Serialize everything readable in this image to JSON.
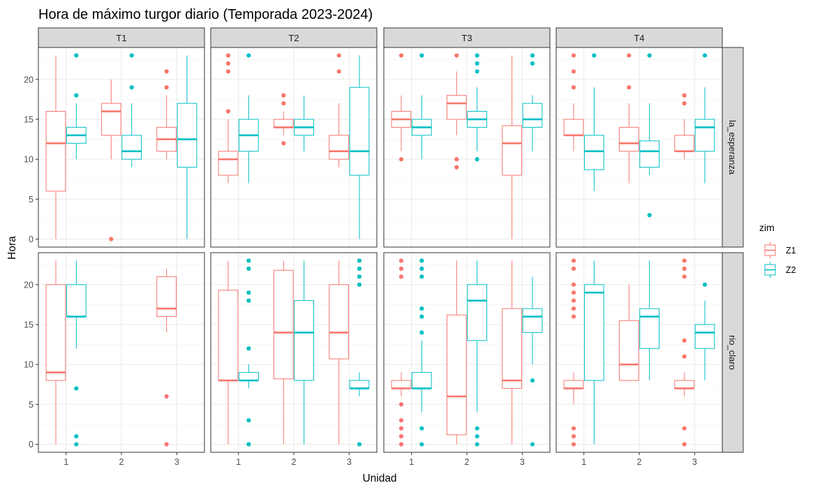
{
  "chart_data": {
    "type": "boxplot",
    "title": "Hora de máximo turgor diario (Temporada 2023-2024)",
    "xlabel": "Unidad",
    "ylabel": "Hora",
    "x_categories": [
      "1",
      "2",
      "3"
    ],
    "y_ticks": [
      0,
      5,
      10,
      15,
      20
    ],
    "ylim": [
      -1,
      24
    ],
    "grid": true,
    "facet_cols": [
      "T1",
      "T2",
      "T3",
      "T4"
    ],
    "facet_rows": [
      "la_esperanza",
      "rio_claro"
    ],
    "legend": {
      "title": "zim",
      "position": "right",
      "entries": [
        {
          "name": "Z1",
          "color": "#F8766D"
        },
        {
          "name": "Z2",
          "color": "#00BFC4"
        }
      ]
    },
    "boxes": [
      {
        "row": "la_esperanza",
        "col": "T1",
        "unidad": "1",
        "zim": "Z1",
        "min": 0,
        "q1": 6,
        "median": 12,
        "q3": 16,
        "max": 23,
        "outliers": []
      },
      {
        "row": "la_esperanza",
        "col": "T1",
        "unidad": "1",
        "zim": "Z2",
        "min": 10,
        "q1": 12,
        "median": 13,
        "q3": 14,
        "max": 17,
        "outliers": [
          18,
          23
        ]
      },
      {
        "row": "la_esperanza",
        "col": "T1",
        "unidad": "2",
        "zim": "Z1",
        "min": 10,
        "q1": 13,
        "median": 16,
        "q3": 17,
        "max": 20,
        "outliers": [
          0
        ]
      },
      {
        "row": "la_esperanza",
        "col": "T1",
        "unidad": "2",
        "zim": "Z2",
        "min": 9,
        "q1": 10,
        "median": 11,
        "q3": 13,
        "max": 17,
        "outliers": [
          19,
          23
        ]
      },
      {
        "row": "la_esperanza",
        "col": "T1",
        "unidad": "3",
        "zim": "Z1",
        "min": 10,
        "q1": 11,
        "median": 12.5,
        "q3": 14,
        "max": 18,
        "outliers": [
          19,
          21
        ]
      },
      {
        "row": "la_esperanza",
        "col": "T1",
        "unidad": "3",
        "zim": "Z2",
        "min": 0,
        "q1": 9,
        "median": 12.5,
        "q3": 17,
        "max": 23,
        "outliers": []
      },
      {
        "row": "la_esperanza",
        "col": "T2",
        "unidad": "1",
        "zim": "Z1",
        "min": 7,
        "q1": 8,
        "median": 10,
        "q3": 11,
        "max": 15,
        "outliers": [
          16,
          21,
          22,
          23
        ]
      },
      {
        "row": "la_esperanza",
        "col": "T2",
        "unidad": "1",
        "zim": "Z2",
        "min": 7,
        "q1": 11,
        "median": 13,
        "q3": 15,
        "max": 18,
        "outliers": [
          23
        ]
      },
      {
        "row": "la_esperanza",
        "col": "T2",
        "unidad": "2",
        "zim": "Z1",
        "min": 13,
        "q1": 14,
        "median": 14,
        "q3": 15,
        "max": 16,
        "outliers": [
          12,
          17,
          18
        ]
      },
      {
        "row": "la_esperanza",
        "col": "T2",
        "unidad": "2",
        "zim": "Z2",
        "min": 11,
        "q1": 13,
        "median": 14,
        "q3": 15,
        "max": 18,
        "outliers": []
      },
      {
        "row": "la_esperanza",
        "col": "T2",
        "unidad": "3",
        "zim": "Z1",
        "min": 9,
        "q1": 10,
        "median": 11,
        "q3": 13,
        "max": 17,
        "outliers": [
          21,
          23
        ]
      },
      {
        "row": "la_esperanza",
        "col": "T2",
        "unidad": "3",
        "zim": "Z2",
        "min": 0,
        "q1": 8,
        "median": 11,
        "q3": 19,
        "max": 23,
        "outliers": []
      },
      {
        "row": "la_esperanza",
        "col": "T3",
        "unidad": "1",
        "zim": "Z1",
        "min": 11,
        "q1": 14,
        "median": 15,
        "q3": 16,
        "max": 18,
        "outliers": [
          10,
          23
        ]
      },
      {
        "row": "la_esperanza",
        "col": "T3",
        "unidad": "1",
        "zim": "Z2",
        "min": 10,
        "q1": 13,
        "median": 14,
        "q3": 15,
        "max": 18,
        "outliers": [
          23
        ]
      },
      {
        "row": "la_esperanza",
        "col": "T3",
        "unidad": "2",
        "zim": "Z1",
        "min": 13,
        "q1": 15,
        "median": 17,
        "q3": 18,
        "max": 21,
        "outliers": [
          9,
          10,
          23
        ]
      },
      {
        "row": "la_esperanza",
        "col": "T3",
        "unidad": "2",
        "zim": "Z2",
        "min": 11,
        "q1": 14,
        "median": 15,
        "q3": 16,
        "max": 19,
        "outliers": [
          10,
          21,
          22,
          23
        ]
      },
      {
        "row": "la_esperanza",
        "col": "T3",
        "unidad": "3",
        "zim": "Z1",
        "min": 0,
        "q1": 8,
        "median": 12,
        "q3": 14.2,
        "max": 23,
        "outliers": []
      },
      {
        "row": "la_esperanza",
        "col": "T3",
        "unidad": "3",
        "zim": "Z2",
        "min": 11,
        "q1": 14,
        "median": 15,
        "q3": 17,
        "max": 18,
        "outliers": [
          22,
          23
        ]
      },
      {
        "row": "la_esperanza",
        "col": "T4",
        "unidad": "1",
        "zim": "Z1",
        "min": 11,
        "q1": 13,
        "median": 13,
        "q3": 15,
        "max": 17,
        "outliers": [
          19,
          21,
          23
        ]
      },
      {
        "row": "la_esperanza",
        "col": "T4",
        "unidad": "1",
        "zim": "Z2",
        "min": 6,
        "q1": 8.7,
        "median": 11,
        "q3": 13,
        "max": 19,
        "outliers": [
          23
        ]
      },
      {
        "row": "la_esperanza",
        "col": "T4",
        "unidad": "2",
        "zim": "Z1",
        "min": 7,
        "q1": 11,
        "median": 12,
        "q3": 14,
        "max": 17,
        "outliers": [
          19,
          23
        ]
      },
      {
        "row": "la_esperanza",
        "col": "T4",
        "unidad": "2",
        "zim": "Z2",
        "min": 8,
        "q1": 9,
        "median": 11,
        "q3": 12.3,
        "max": 17,
        "outliers": [
          3,
          23
        ]
      },
      {
        "row": "la_esperanza",
        "col": "T4",
        "unidad": "3",
        "zim": "Z1",
        "min": 10,
        "q1": 11,
        "median": 11,
        "q3": 13,
        "max": 15,
        "outliers": [
          17,
          18
        ]
      },
      {
        "row": "la_esperanza",
        "col": "T4",
        "unidad": "3",
        "zim": "Z2",
        "min": 7,
        "q1": 11,
        "median": 14,
        "q3": 15,
        "max": 19,
        "outliers": [
          23
        ]
      },
      {
        "row": "rio_claro",
        "col": "T1",
        "unidad": "1",
        "zim": "Z1",
        "min": 0,
        "q1": 8,
        "median": 9,
        "q3": 20,
        "max": 23,
        "outliers": []
      },
      {
        "row": "rio_claro",
        "col": "T1",
        "unidad": "1",
        "zim": "Z2",
        "min": 12,
        "q1": 16,
        "median": 16,
        "q3": 20,
        "max": 23,
        "outliers": [
          0,
          1,
          7
        ]
      },
      {
        "row": "rio_claro",
        "col": "T1",
        "unidad": "3",
        "zim": "Z1",
        "min": 14,
        "q1": 16,
        "median": 17,
        "q3": 21,
        "max": 22,
        "outliers": [
          0,
          6
        ]
      },
      {
        "row": "rio_claro",
        "col": "T2",
        "unidad": "1",
        "zim": "Z1",
        "min": 0,
        "q1": 8,
        "median": 8,
        "q3": 19.3,
        "max": 23,
        "outliers": []
      },
      {
        "row": "rio_claro",
        "col": "T2",
        "unidad": "1",
        "zim": "Z2",
        "min": 7,
        "q1": 8,
        "median": 8,
        "q3": 9,
        "max": 10,
        "outliers": [
          0,
          3,
          12,
          18,
          19,
          22,
          23
        ]
      },
      {
        "row": "rio_claro",
        "col": "T2",
        "unidad": "2",
        "zim": "Z1",
        "min": 0,
        "q1": 8.2,
        "median": 14,
        "q3": 21.8,
        "max": 23,
        "outliers": []
      },
      {
        "row": "rio_claro",
        "col": "T2",
        "unidad": "2",
        "zim": "Z2",
        "min": 0,
        "q1": 8,
        "median": 14,
        "q3": 18,
        "max": 23,
        "outliers": []
      },
      {
        "row": "rio_claro",
        "col": "T2",
        "unidad": "3",
        "zim": "Z1",
        "min": 0,
        "q1": 10.7,
        "median": 14,
        "q3": 20,
        "max": 23,
        "outliers": []
      },
      {
        "row": "rio_claro",
        "col": "T2",
        "unidad": "3",
        "zim": "Z2",
        "min": 6,
        "q1": 7,
        "median": 7,
        "q3": 8,
        "max": 9,
        "outliers": [
          0,
          20,
          21,
          22,
          23
        ]
      },
      {
        "row": "rio_claro",
        "col": "T3",
        "unidad": "1",
        "zim": "Z1",
        "min": 6,
        "q1": 7,
        "median": 7,
        "q3": 8,
        "max": 9,
        "outliers": [
          0,
          1,
          2,
          3,
          5,
          21,
          22,
          23
        ]
      },
      {
        "row": "rio_claro",
        "col": "T3",
        "unidad": "1",
        "zim": "Z2",
        "min": 4,
        "q1": 7,
        "median": 7,
        "q3": 9,
        "max": 13,
        "outliers": [
          0,
          2,
          14,
          16,
          17,
          21,
          22,
          23
        ]
      },
      {
        "row": "rio_claro",
        "col": "T3",
        "unidad": "2",
        "zim": "Z1",
        "min": 0,
        "q1": 1.2,
        "median": 6,
        "q3": 16.2,
        "max": 23,
        "outliers": []
      },
      {
        "row": "rio_claro",
        "col": "T3",
        "unidad": "2",
        "zim": "Z2",
        "min": 4,
        "q1": 13,
        "median": 18,
        "q3": 20,
        "max": 23,
        "outliers": [
          0,
          1,
          2
        ]
      },
      {
        "row": "rio_claro",
        "col": "T3",
        "unidad": "3",
        "zim": "Z1",
        "min": 0,
        "q1": 7,
        "median": 8,
        "q3": 17,
        "max": 23,
        "outliers": []
      },
      {
        "row": "rio_claro",
        "col": "T3",
        "unidad": "3",
        "zim": "Z2",
        "min": 10,
        "q1": 14,
        "median": 16,
        "q3": 17,
        "max": 21,
        "outliers": [
          0,
          8
        ]
      },
      {
        "row": "rio_claro",
        "col": "T4",
        "unidad": "1",
        "zim": "Z1",
        "min": 5,
        "q1": 7,
        "median": 7,
        "q3": 8,
        "max": 9,
        "outliers": [
          0,
          1,
          2,
          16,
          17,
          18,
          19,
          20,
          22,
          23
        ]
      },
      {
        "row": "rio_claro",
        "col": "T4",
        "unidad": "1",
        "zim": "Z2",
        "min": 0,
        "q1": 8,
        "median": 19,
        "q3": 20,
        "max": 23,
        "outliers": []
      },
      {
        "row": "rio_claro",
        "col": "T4",
        "unidad": "2",
        "zim": "Z1",
        "min": 8,
        "q1": 8,
        "median": 10,
        "q3": 15.5,
        "max": 20,
        "outliers": []
      },
      {
        "row": "rio_claro",
        "col": "T4",
        "unidad": "2",
        "zim": "Z2",
        "min": 8,
        "q1": 12,
        "median": 16,
        "q3": 17,
        "max": 23,
        "outliers": []
      },
      {
        "row": "rio_claro",
        "col": "T4",
        "unidad": "3",
        "zim": "Z1",
        "min": 6,
        "q1": 7,
        "median": 7,
        "q3": 8,
        "max": 9,
        "outliers": [
          0,
          2,
          11,
          13,
          21,
          22,
          23
        ]
      },
      {
        "row": "rio_claro",
        "col": "T4",
        "unidad": "3",
        "zim": "Z2",
        "min": 8,
        "q1": 12,
        "median": 14,
        "q3": 15,
        "max": 18,
        "outliers": [
          20
        ]
      }
    ]
  }
}
